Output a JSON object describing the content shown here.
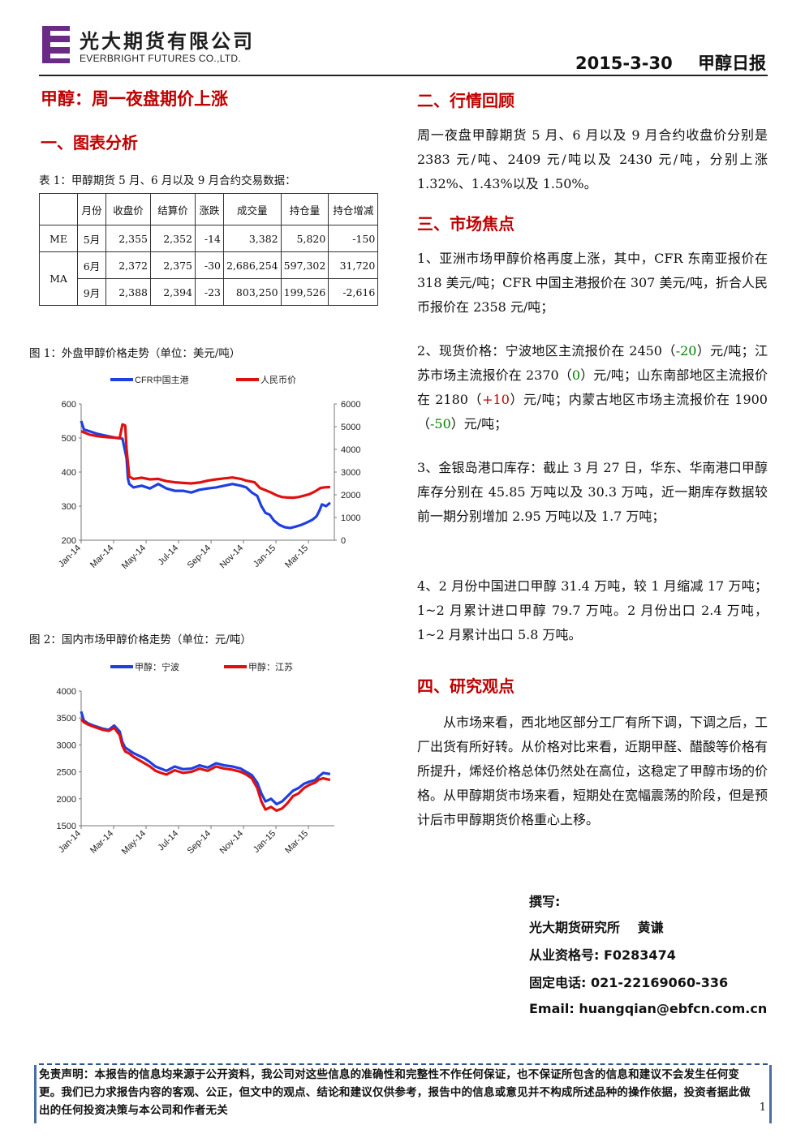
{
  "header": {
    "company_cn": "光大期货有限公司",
    "company_en": "EVERBRIGHT FUTURES CO.,LTD.",
    "date": "2015-3-30",
    "report_name": "甲醇日报",
    "brand_color": "#6a2b86"
  },
  "title": "甲醇：周一夜盘期价上涨",
  "section1": {
    "heading": "一、图表分析",
    "table_caption": "表 1：甲醇期货 5 月、6 月以及 9 月合约交易数据：",
    "table": {
      "columns": [
        "",
        "月份",
        "收盘价",
        "结算价",
        "涨跌",
        "成交量",
        "持仓量",
        "持仓增减"
      ],
      "groups": [
        {
          "name": "ME",
          "rows": [
            [
              "5月",
              "2,355",
              "2,352",
              "-14",
              "3,382",
              "5,820",
              "-150"
            ]
          ]
        },
        {
          "name": "MA",
          "rows": [
            [
              "6月",
              "2,372",
              "2,375",
              "-30",
              "2,686,254",
              "597,302",
              "31,720"
            ],
            [
              "9月",
              "2,388",
              "2,394",
              "-23",
              "803,250",
              "199,526",
              "-2,616"
            ]
          ]
        }
      ]
    }
  },
  "figure1": {
    "caption": "图 1：外盘甲醇价格走势（单位：美元/吨）",
    "chart_data": {
      "type": "line",
      "x_ticks": [
        "Jan-14",
        "Mar-14",
        "May-14",
        "Jul-14",
        "Sep-14",
        "Nov-14",
        "Jan-15",
        "Mar-15"
      ],
      "left_axis": {
        "ylim": [
          200,
          600
        ],
        "ticks": [
          200,
          300,
          400,
          500,
          600
        ]
      },
      "right_axis": {
        "ylim": [
          0,
          6000
        ],
        "ticks": [
          0,
          1000,
          2000,
          3000,
          4000,
          5000,
          6000
        ]
      },
      "series": [
        {
          "name": "CFR中国主港",
          "axis": "left",
          "color": "#1f3fe0",
          "points": [
            [
              0,
              550
            ],
            [
              0.1,
              525
            ],
            [
              0.3,
              520
            ],
            [
              0.6,
              512
            ],
            [
              1.0,
              505
            ],
            [
              1.3,
              500
            ],
            [
              1.5,
              498
            ],
            [
              1.6,
              460
            ],
            [
              1.65,
              440
            ],
            [
              1.7,
              380
            ],
            [
              1.75,
              365
            ],
            [
              1.9,
              355
            ],
            [
              2.2,
              360
            ],
            [
              2.5,
              352
            ],
            [
              2.8,
              365
            ],
            [
              3.1,
              352
            ],
            [
              3.4,
              345
            ],
            [
              3.7,
              345
            ],
            [
              4.0,
              340
            ],
            [
              4.3,
              348
            ],
            [
              4.6,
              352
            ],
            [
              4.9,
              355
            ],
            [
              5.2,
              360
            ],
            [
              5.5,
              365
            ],
            [
              5.8,
              360
            ],
            [
              6.0,
              355
            ],
            [
              6.2,
              340
            ],
            [
              6.4,
              330
            ],
            [
              6.55,
              300
            ],
            [
              6.7,
              280
            ],
            [
              6.85,
              275
            ],
            [
              7.0,
              258
            ],
            [
              7.2,
              245
            ],
            [
              7.4,
              238
            ],
            [
              7.6,
              236
            ],
            [
              7.8,
              240
            ],
            [
              8.0,
              245
            ],
            [
              8.2,
              252
            ],
            [
              8.4,
              260
            ],
            [
              8.55,
              270
            ],
            [
              8.65,
              285
            ],
            [
              8.75,
              305
            ],
            [
              8.9,
              300
            ],
            [
              9.05,
              310
            ]
          ]
        },
        {
          "name": "人民币价",
          "axis": "right",
          "color": "#e01010",
          "points": [
            [
              0,
              4800
            ],
            [
              0.3,
              4650
            ],
            [
              0.6,
              4580
            ],
            [
              1.0,
              4530
            ],
            [
              1.4,
              4500
            ],
            [
              1.5,
              5100
            ],
            [
              1.6,
              5050
            ],
            [
              1.65,
              4000
            ],
            [
              1.75,
              2800
            ],
            [
              1.9,
              2700
            ],
            [
              2.2,
              2750
            ],
            [
              2.5,
              2680
            ],
            [
              2.8,
              2700
            ],
            [
              3.1,
              2600
            ],
            [
              3.4,
              2550
            ],
            [
              3.7,
              2520
            ],
            [
              4.0,
              2500
            ],
            [
              4.3,
              2540
            ],
            [
              4.6,
              2620
            ],
            [
              4.9,
              2680
            ],
            [
              5.2,
              2720
            ],
            [
              5.5,
              2760
            ],
            [
              5.8,
              2700
            ],
            [
              6.0,
              2620
            ],
            [
              6.3,
              2550
            ],
            [
              6.5,
              2300
            ],
            [
              6.7,
              2200
            ],
            [
              6.9,
              2100
            ],
            [
              7.1,
              1980
            ],
            [
              7.3,
              1900
            ],
            [
              7.5,
              1880
            ],
            [
              7.7,
              1870
            ],
            [
              7.9,
              1900
            ],
            [
              8.1,
              1960
            ],
            [
              8.3,
              2030
            ],
            [
              8.5,
              2150
            ],
            [
              8.7,
              2300
            ],
            [
              8.85,
              2330
            ],
            [
              9.05,
              2340
            ]
          ]
        }
      ]
    }
  },
  "figure2": {
    "caption": "图 2：国内市场甲醇价格走势（单位：元/吨）",
    "chart_data": {
      "type": "line",
      "x_ticks": [
        "Jan-14",
        "Mar-14",
        "May-14",
        "Jul-14",
        "Sep-14",
        "Nov-14",
        "Jan-15",
        "Mar-15"
      ],
      "y_axis": {
        "ylim": [
          1500,
          4000
        ],
        "ticks": [
          1500,
          2000,
          2500,
          3000,
          3500,
          4000
        ]
      },
      "series": [
        {
          "name": "甲醇：宁波",
          "color": "#1f3fe0",
          "points": [
            [
              0,
              3620
            ],
            [
              0.1,
              3450
            ],
            [
              0.25,
              3400
            ],
            [
              0.5,
              3350
            ],
            [
              0.8,
              3300
            ],
            [
              1.0,
              3280
            ],
            [
              1.2,
              3360
            ],
            [
              1.4,
              3250
            ],
            [
              1.5,
              3050
            ],
            [
              1.6,
              2950
            ],
            [
              1.75,
              2900
            ],
            [
              1.9,
              2850
            ],
            [
              2.1,
              2800
            ],
            [
              2.3,
              2750
            ],
            [
              2.5,
              2680
            ],
            [
              2.7,
              2600
            ],
            [
              2.9,
              2560
            ],
            [
              3.1,
              2520
            ],
            [
              3.4,
              2600
            ],
            [
              3.7,
              2550
            ],
            [
              4.0,
              2560
            ],
            [
              4.3,
              2620
            ],
            [
              4.6,
              2580
            ],
            [
              4.9,
              2660
            ],
            [
              5.2,
              2620
            ],
            [
              5.5,
              2600
            ],
            [
              5.8,
              2560
            ],
            [
              6.0,
              2500
            ],
            [
              6.2,
              2440
            ],
            [
              6.4,
              2300
            ],
            [
              6.55,
              2100
            ],
            [
              6.7,
              1950
            ],
            [
              6.9,
              2000
            ],
            [
              7.1,
              1900
            ],
            [
              7.3,
              1950
            ],
            [
              7.5,
              2050
            ],
            [
              7.7,
              2150
            ],
            [
              7.9,
              2200
            ],
            [
              8.1,
              2280
            ],
            [
              8.3,
              2320
            ],
            [
              8.5,
              2350
            ],
            [
              8.65,
              2420
            ],
            [
              8.8,
              2480
            ],
            [
              9.05,
              2460
            ]
          ]
        },
        {
          "name": "甲醇：江苏",
          "color": "#e01010",
          "points": [
            [
              0,
              3480
            ],
            [
              0.1,
              3420
            ],
            [
              0.25,
              3380
            ],
            [
              0.5,
              3330
            ],
            [
              0.8,
              3280
            ],
            [
              1.0,
              3260
            ],
            [
              1.2,
              3320
            ],
            [
              1.4,
              3180
            ],
            [
              1.5,
              2980
            ],
            [
              1.6,
              2880
            ],
            [
              1.75,
              2840
            ],
            [
              1.9,
              2780
            ],
            [
              2.1,
              2720
            ],
            [
              2.3,
              2660
            ],
            [
              2.5,
              2600
            ],
            [
              2.7,
              2520
            ],
            [
              2.9,
              2480
            ],
            [
              3.1,
              2450
            ],
            [
              3.4,
              2530
            ],
            [
              3.7,
              2480
            ],
            [
              4.0,
              2500
            ],
            [
              4.3,
              2560
            ],
            [
              4.6,
              2520
            ],
            [
              4.9,
              2600
            ],
            [
              5.2,
              2560
            ],
            [
              5.5,
              2540
            ],
            [
              5.8,
              2500
            ],
            [
              6.0,
              2450
            ],
            [
              6.2,
              2380
            ],
            [
              6.4,
              2200
            ],
            [
              6.55,
              1950
            ],
            [
              6.7,
              1800
            ],
            [
              6.9,
              1850
            ],
            [
              7.1,
              1780
            ],
            [
              7.3,
              1820
            ],
            [
              7.5,
              1920
            ],
            [
              7.7,
              2050
            ],
            [
              7.9,
              2100
            ],
            [
              8.1,
              2200
            ],
            [
              8.3,
              2260
            ],
            [
              8.5,
              2300
            ],
            [
              8.65,
              2360
            ],
            [
              8.8,
              2380
            ],
            [
              9.05,
              2350
            ]
          ]
        }
      ]
    }
  },
  "section2": {
    "heading": "二、行情回顾",
    "text": "周一夜盘甲醇期货 5 月、6 月以及 9 月合约收盘价分别是 2383 元/吨、2409 元/吨以及 2430 元/吨，分别上涨 1.32%、1.43%以及 1.50%。"
  },
  "section3": {
    "heading": "三、市场焦点",
    "item1": "1、亚洲市场甲醇价格再度上涨，其中，CFR 东南亚报价在 318 美元/吨；CFR 中国主港报价在 307 美元/吨，折合人民币报价在 2358 元/吨；",
    "item2": {
      "a": "2、现货价格：宁波地区主流报价在 2450（",
      "a_val": "-20",
      "b": "）元/吨；江苏市场主流报价在 2370（",
      "b_val": "0",
      "c": "）元/吨；山东南部地区主流报价在 2180（",
      "c_val": "+10",
      "d": "）元/吨；内蒙古地区市场主流报价在 1900（",
      "d_val": "-50",
      "e": "）元/吨；"
    },
    "item3": "3、金银岛港口库存：截止 3 月 27 日，华东、华南港口甲醇库存分别在 45.85 万吨以及 30.3 万吨，近一期库存数据较前一期分别增加 2.95 万吨以及 1.7 万吨；",
    "item4": "4、2 月份中国进口甲醇 31.4 万吨，较 1 月缩减 17 万吨；1~2 月累计进口甲醇 79.7 万吨。2 月份出口 2.4 万吨，1~2 月累计出口 5.8 万吨。"
  },
  "section4": {
    "heading": "四、研究观点",
    "text": "从市场来看，西北地区部分工厂有所下调，下调之后，工厂出货有所好转。从价格对比来看，近期甲醛、醋酸等价格有所提升，烯烃价格总体仍然处在高位，这稳定了甲醇市场的价格。从甲醇期货市场来看，短期处在宽幅震荡的阶段，但是预计后市甲醇期货价格重心上移。"
  },
  "signature": {
    "label": "撰写:",
    "author": "光大期货研究所　 黄谦",
    "license": "从业资格号: F0283474",
    "phone": "固定电话: 021-22169060-336",
    "email": "Email: huangqian@ebfcn.com.cn"
  },
  "footer": {
    "disclaimer": "免责声明：本报告的信息均来源于公开资料，我公司对这些信息的准确性和完整性不作任何保证，也不保证所包含的信息和建议不会发生任何变更。我们已力求报告内容的客观、公正，但文中的观点、结论和建议仅供参考，报告中的信息或意见并不构成所述品种的操作依据，投资者据此做出的任何投资决策与本公司和作者无关",
    "page": "1"
  }
}
